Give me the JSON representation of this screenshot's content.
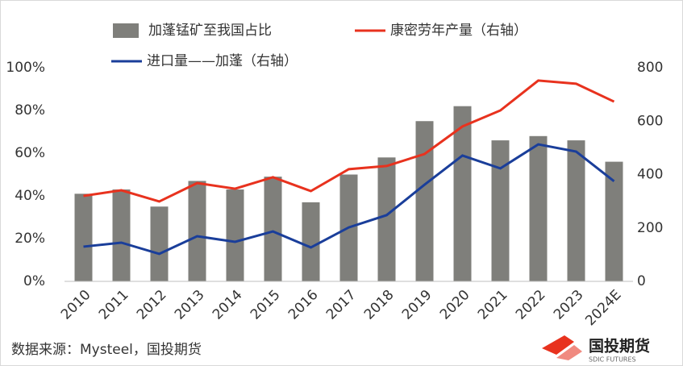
{
  "chart_data": {
    "type": "bar_line",
    "categories": [
      "2010",
      "2011",
      "2012",
      "2013",
      "2014",
      "2015",
      "2016",
      "2017",
      "2018",
      "2019",
      "2020",
      "2021",
      "2022",
      "2023",
      "2024E"
    ],
    "series": [
      {
        "name": "加蓬锰矿至我国占比",
        "type": "bar",
        "color": "#7f7f7b",
        "values": [
          41,
          43,
          35,
          47,
          43,
          49,
          37,
          50,
          58,
          75,
          82,
          66,
          68,
          66,
          56
        ]
      },
      {
        "name": "康密劳年产量（右轴）",
        "type": "line",
        "axis": "y2",
        "color": "#e8321e",
        "values": [
          320,
          341,
          299,
          368,
          347,
          390,
          338,
          420,
          432,
          477,
          580,
          640,
          752,
          740,
          673
        ]
      },
      {
        "name": "进口量——加蓬（右轴）",
        "type": "line",
        "axis": "y2",
        "color": "#1a3e9a",
        "values": [
          130,
          145,
          103,
          169,
          148,
          187,
          127,
          202,
          248,
          362,
          471,
          423,
          513,
          486,
          375
        ]
      }
    ],
    "ylim": [
      0,
      100
    ],
    "yticks": [
      {
        "value": 0,
        "label": "0%"
      },
      {
        "value": 20,
        "label": "20%"
      },
      {
        "value": 40,
        "label": "40%"
      },
      {
        "value": 60,
        "label": "60%"
      },
      {
        "value": 80,
        "label": "80%"
      },
      {
        "value": 100,
        "label": "100%"
      }
    ],
    "y2lim": [
      0,
      800
    ],
    "y2ticks": [
      0,
      200,
      400,
      600,
      800
    ],
    "source": "数据来源：Mysteel，国投期货",
    "logo": "国投期货",
    "logo_sub": "SDIC FUTURES"
  }
}
